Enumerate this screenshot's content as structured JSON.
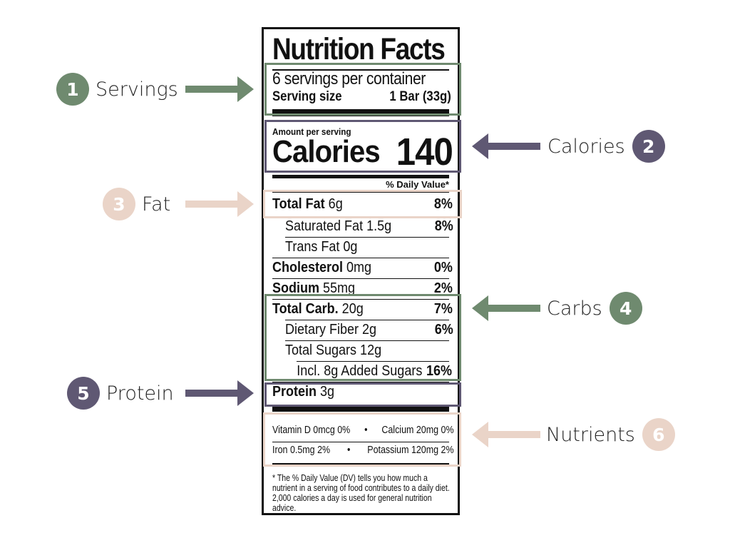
{
  "colors": {
    "green": "#6f8a6f",
    "purple": "#5f5873",
    "pink": "#ead4c8",
    "ink": "#111111"
  },
  "label": {
    "title": "Nutrition Facts",
    "servings_per_container": "6 servings per container",
    "serving_size_label": "Serving size",
    "serving_size_value": "1 Bar (33g)",
    "amount_per_serving": "Amount per serving",
    "calories_label": "Calories",
    "calories_value": "140",
    "daily_value_header": "% Daily Value*",
    "nutrients": [
      {
        "name": "Total Fat",
        "amount": "6g",
        "dv": "8%"
      },
      {
        "name": "Saturated Fat",
        "amount": "1.5g",
        "dv": "8%"
      },
      {
        "name": "Trans Fat",
        "amount": "0g",
        "dv": ""
      },
      {
        "name": "Cholesterol",
        "amount": "0mg",
        "dv": "0%"
      },
      {
        "name": "Sodium",
        "amount": "55mg",
        "dv": "2%"
      },
      {
        "name": "Total Carb.",
        "amount": "20g",
        "dv": "7%"
      },
      {
        "name": "Dietary Fiber",
        "amount": "2g",
        "dv": "6%"
      },
      {
        "name": "Total Sugars",
        "amount": "12g",
        "dv": ""
      },
      {
        "name": "Incl. 8g Added Sugars",
        "amount": "",
        "dv": "16%"
      },
      {
        "name": "Protein",
        "amount": "3g",
        "dv": ""
      }
    ],
    "vitamins": [
      {
        "left": "Vitamin D 0mcg 0%",
        "right": "Calcium 20mg 0%"
      },
      {
        "left": "Iron 0.5mg 2%",
        "right": "Potassium 120mg 2%"
      }
    ],
    "bullet": "•",
    "footnote": "* The % Daily Value (DV) tells you how much a nutrient in a serving of food contributes to a daily diet. 2,000 calories a day is used for general nutrition advice."
  },
  "callouts": [
    {
      "number": "1",
      "label": "Servings",
      "color": "green"
    },
    {
      "number": "2",
      "label": "Calories",
      "color": "purple"
    },
    {
      "number": "3",
      "label": "Fat",
      "color": "pink"
    },
    {
      "number": "4",
      "label": "Carbs",
      "color": "green"
    },
    {
      "number": "5",
      "label": "Protein",
      "color": "purple"
    },
    {
      "number": "6",
      "label": "Nutrients",
      "color": "pink"
    }
  ]
}
